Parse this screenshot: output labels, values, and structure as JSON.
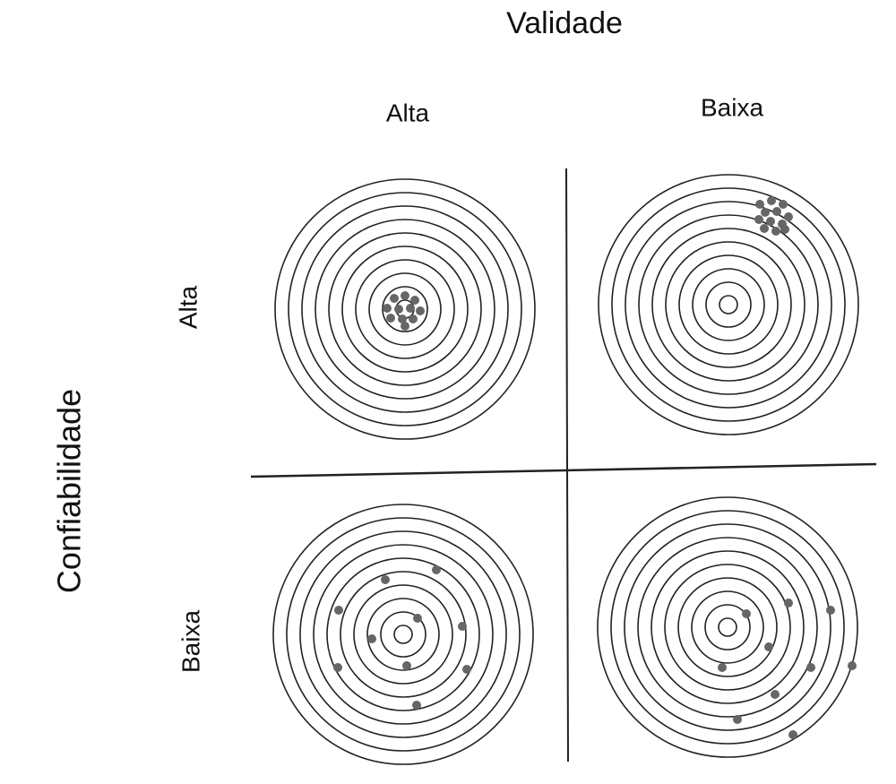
{
  "header": {
    "title": "Validade"
  },
  "columns": [
    "Alta",
    "Baixa"
  ],
  "row_axis": {
    "title": "Confiabilidade",
    "rows": [
      "Alta",
      "Baixa"
    ]
  }
}
